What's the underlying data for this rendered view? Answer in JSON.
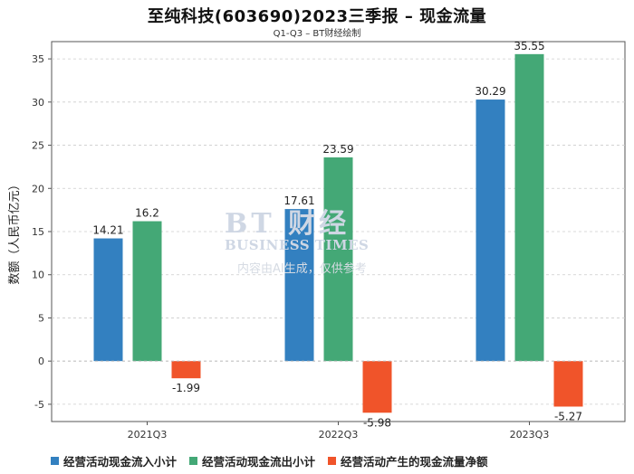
{
  "title": "至纯科技(603690)2023三季报 – 现金流量",
  "subtitle": "Q1-Q3 – BT财经绘制",
  "watermark": {
    "logo": "BT 财经",
    "name": "BUSINESS TIMES",
    "note": "内容由AI生成，仅供参考"
  },
  "colors": {
    "inflow": "#3380c0",
    "outflow": "#44a876",
    "net": "#f0542a",
    "grid": "#cccccc",
    "axis": "#555555"
  },
  "chart_data": {
    "type": "bar",
    "title": "至纯科技(603690)2023三季报 – 现金流量",
    "xlabel": "",
    "ylabel": "数额（人民币亿元）",
    "ylim": [
      -7,
      37
    ],
    "yticks": [
      -5,
      0,
      5,
      10,
      15,
      20,
      25,
      30,
      35
    ],
    "grid": true,
    "legend_position": "bottom",
    "categories": [
      "2021Q3",
      "2022Q3",
      "2023Q3"
    ],
    "series": [
      {
        "name": "经营活动现金流入小计",
        "values": [
          14.21,
          17.61,
          30.29
        ],
        "labels": [
          "14.21",
          "17.61",
          "30.29"
        ]
      },
      {
        "name": "经营活动现金流出小计",
        "values": [
          16.2,
          23.59,
          35.55
        ],
        "labels": [
          "16.2",
          "23.59",
          "35.55"
        ]
      },
      {
        "name": "经营活动产生的现金流量净额",
        "values": [
          -1.99,
          -5.98,
          -5.27
        ],
        "labels": [
          "-1.99",
          "-5.98",
          "-5.27"
        ]
      }
    ]
  }
}
